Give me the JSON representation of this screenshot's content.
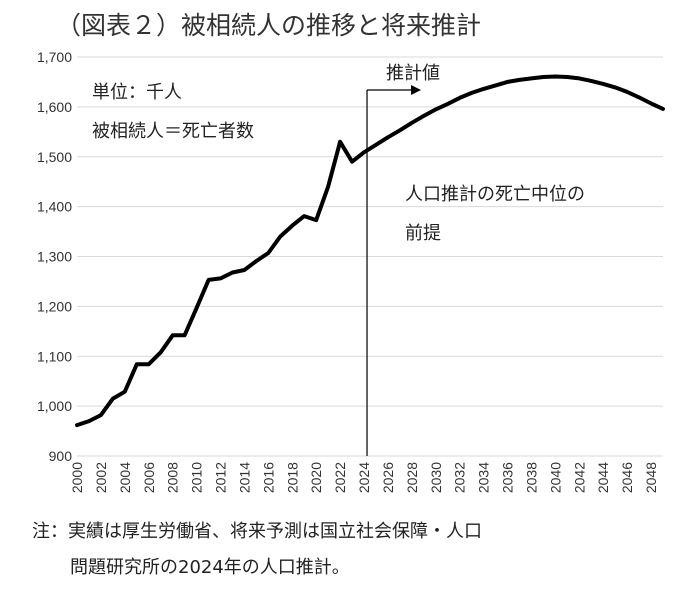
{
  "title": "（図表２）被相続人の推移と将来推計",
  "notes": {
    "line1": "注：実績は厚生労働省、将来予測は国立社会保障・人口",
    "line2": "問題研究所の2024年の人口推計。"
  },
  "chart_data": {
    "type": "line",
    "title": "（図表２）被相続人の推移と将来推計",
    "xlabel": "",
    "ylabel": "",
    "ylim": [
      900,
      1700
    ],
    "yticks": [
      900,
      1000,
      1100,
      1200,
      1300,
      1400,
      1500,
      1600,
      1700
    ],
    "ytick_labels": [
      "900",
      "1,000",
      "1,100",
      "1,200",
      "1,300",
      "1,400",
      "1,500",
      "1,600",
      "1,700"
    ],
    "xlim": [
      2000,
      2049
    ],
    "xticks": [
      2000,
      2002,
      2004,
      2006,
      2008,
      2010,
      2012,
      2014,
      2016,
      2018,
      2020,
      2022,
      2024,
      2026,
      2028,
      2030,
      2032,
      2034,
      2036,
      2038,
      2040,
      2042,
      2044,
      2046,
      2048
    ],
    "grid": true,
    "annotations": {
      "unit": "単位：千人",
      "definition": "被相続人＝死亡者数",
      "projection_label": "推計値",
      "projection_basis_1": "人口推計の死亡中位の",
      "projection_basis_2": "前提"
    },
    "projection_start": 2024,
    "x": [
      2000,
      2001,
      2002,
      2003,
      2004,
      2005,
      2006,
      2007,
      2008,
      2009,
      2010,
      2011,
      2012,
      2013,
      2014,
      2015,
      2016,
      2017,
      2018,
      2019,
      2020,
      2021,
      2022,
      2023,
      2024,
      2025,
      2026,
      2027,
      2028,
      2029,
      2030,
      2031,
      2032,
      2033,
      2034,
      2035,
      2036,
      2037,
      2038,
      2039,
      2040,
      2041,
      2042,
      2043,
      2044,
      2045,
      2046,
      2047,
      2048,
      2049
    ],
    "values": [
      962,
      970,
      982,
      1015,
      1029,
      1084,
      1084,
      1108,
      1142,
      1142,
      1197,
      1253,
      1256,
      1268,
      1273,
      1291,
      1307,
      1340,
      1362,
      1381,
      1373,
      1440,
      1530,
      1490,
      1509,
      1524,
      1539,
      1553,
      1568,
      1582,
      1595,
      1606,
      1618,
      1628,
      1636,
      1643,
      1650,
      1654,
      1657,
      1660,
      1661,
      1660,
      1657,
      1652,
      1646,
      1639,
      1630,
      1619,
      1607,
      1596
    ]
  },
  "colors": {
    "line": "#000000",
    "grid": "#d9d9d9",
    "text": "#222222"
  }
}
